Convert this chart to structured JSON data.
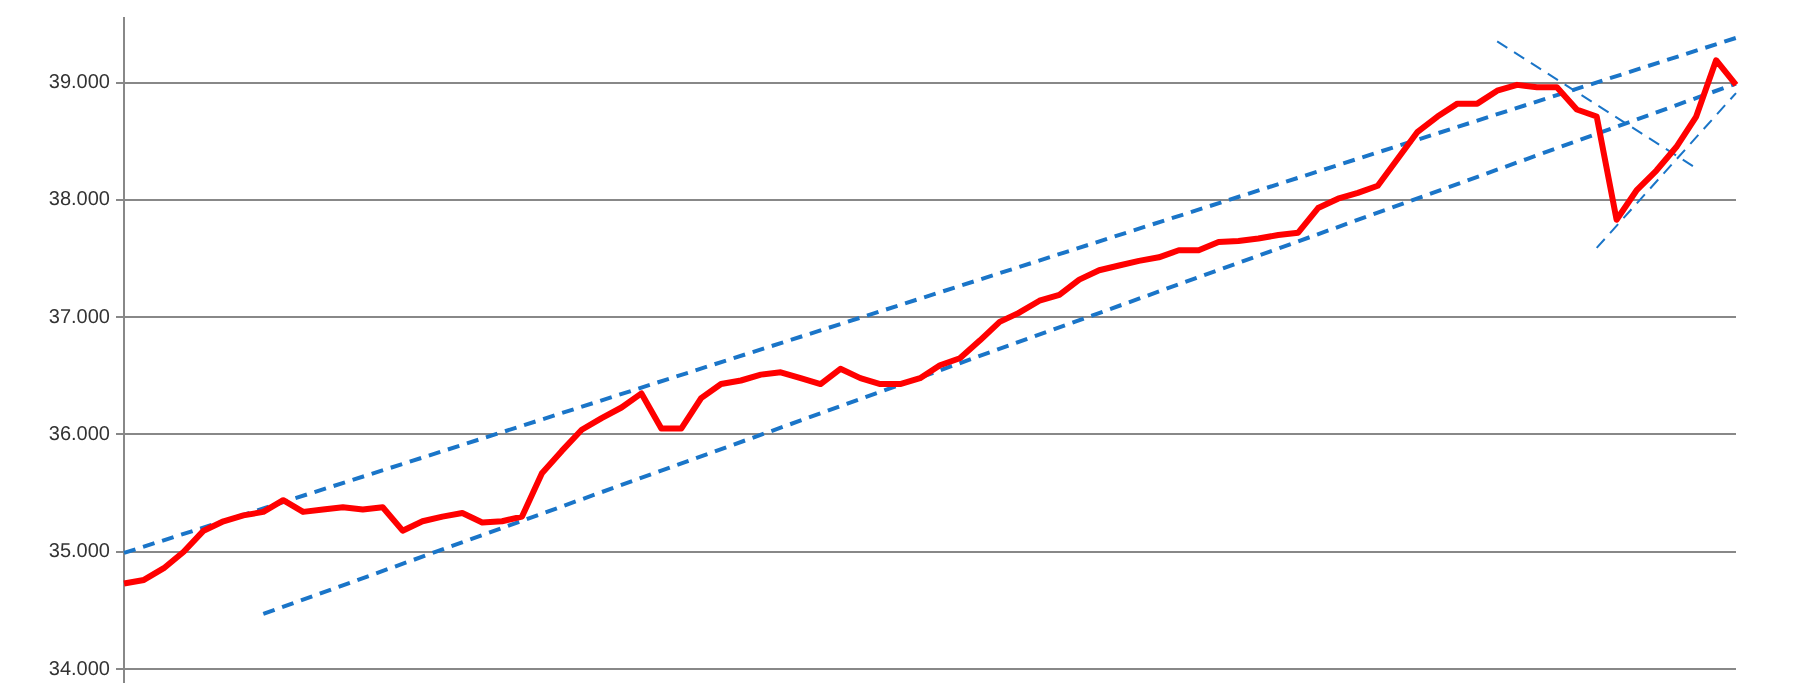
{
  "chart_data": {
    "type": "line",
    "categories": [
      null,
      null,
      null,
      null,
      null,
      null,
      null,
      null,
      null,
      null,
      null,
      null,
      null,
      null,
      null,
      null,
      null,
      null,
      null,
      null,
      null,
      null,
      null,
      null,
      null,
      null,
      null,
      null,
      null,
      null,
      null,
      null,
      null,
      null,
      null,
      null,
      null,
      null,
      null,
      null,
      null,
      null,
      null,
      null,
      null,
      null,
      null,
      null,
      null,
      null,
      null,
      null,
      null,
      null,
      null,
      null,
      null,
      null,
      null,
      null,
      null,
      null,
      null,
      null,
      null,
      null,
      null,
      null,
      null,
      null,
      null,
      null,
      null,
      null,
      null,
      null,
      null,
      null,
      null,
      null,
      null,
      null
    ],
    "series": [
      {
        "color": "#ff0000",
        "values": [
          34730,
          34760,
          34860,
          35000,
          35180,
          35260,
          35310,
          35340,
          35440,
          35340,
          35360,
          35380,
          35360,
          35380,
          35180,
          35260,
          35300,
          35330,
          35250,
          35260,
          35300,
          35670,
          35860,
          36040,
          36140,
          36230,
          36350,
          36050,
          36050,
          36310,
          36430,
          36460,
          36510,
          36530,
          36480,
          36430,
          36560,
          36480,
          36430,
          36430,
          36480,
          36590,
          36650,
          36800,
          36960,
          37040,
          37140,
          37190,
          37320,
          37400,
          37440,
          37480,
          37510,
          37570,
          37570,
          37640,
          37650,
          37670,
          37700,
          37720,
          37930,
          38010,
          38060,
          38120,
          38350,
          38580,
          38710,
          38820,
          38820,
          38930,
          38980,
          38960,
          38960,
          38770,
          38710,
          37830,
          38080,
          38250,
          38450,
          38710,
          39190,
          38980
        ]
      },
      {
        "color": "#1a75c8",
        "line_style": "dashed",
        "values": [
          34990,
          null,
          null,
          null,
          null,
          null,
          null,
          null,
          null,
          null,
          null,
          null,
          null,
          null,
          null,
          null,
          null,
          null,
          null,
          null,
          null,
          null,
          null,
          null,
          null,
          null,
          null,
          null,
          null,
          null,
          null,
          null,
          null,
          null,
          null,
          null,
          null,
          null,
          null,
          null,
          null,
          null,
          null,
          null,
          null,
          null,
          null,
          null,
          null,
          null,
          null,
          null,
          null,
          null,
          null,
          null,
          null,
          null,
          null,
          null,
          null,
          null,
          null,
          null,
          null,
          null,
          null,
          null,
          null,
          null,
          null,
          null,
          null,
          null,
          null,
          null,
          null,
          null,
          null,
          null,
          null,
          39380
        ]
      },
      {
        "color": "#1a75c8",
        "line_style": "dashed",
        "values": [
          null,
          null,
          null,
          null,
          null,
          null,
          null,
          34470,
          null,
          null,
          null,
          null,
          null,
          null,
          null,
          null,
          null,
          null,
          null,
          null,
          null,
          null,
          null,
          null,
          null,
          null,
          null,
          null,
          null,
          null,
          null,
          null,
          null,
          null,
          null,
          null,
          null,
          null,
          null,
          null,
          null,
          null,
          null,
          null,
          null,
          null,
          null,
          null,
          null,
          null,
          null,
          null,
          null,
          null,
          null,
          null,
          null,
          null,
          null,
          null,
          null,
          null,
          null,
          null,
          null,
          null,
          null,
          null,
          null,
          null,
          null,
          null,
          null,
          null,
          null,
          null,
          null,
          null,
          null,
          null,
          null,
          38990
        ]
      },
      {
        "color": "#1a75c8",
        "line_style": "dashed",
        "values": [
          null,
          null,
          null,
          null,
          null,
          null,
          null,
          null,
          null,
          null,
          null,
          null,
          null,
          null,
          null,
          null,
          null,
          null,
          null,
          null,
          null,
          null,
          null,
          null,
          null,
          null,
          null,
          null,
          null,
          null,
          null,
          null,
          null,
          null,
          null,
          null,
          null,
          null,
          null,
          null,
          null,
          null,
          null,
          null,
          null,
          null,
          null,
          null,
          null,
          null,
          null,
          null,
          null,
          null,
          null,
          null,
          null,
          null,
          null,
          null,
          null,
          null,
          null,
          null,
          null,
          null,
          null,
          null,
          null,
          39350,
          null,
          null,
          null,
          null,
          null,
          null,
          null,
          null,
          null,
          38270,
          null,
          null
        ]
      },
      {
        "color": "#1a75c8",
        "line_style": "dashed",
        "values": [
          null,
          null,
          null,
          null,
          null,
          null,
          null,
          null,
          null,
          null,
          null,
          null,
          null,
          null,
          null,
          null,
          null,
          null,
          null,
          null,
          null,
          null,
          null,
          null,
          null,
          null,
          null,
          null,
          null,
          null,
          null,
          null,
          null,
          null,
          null,
          null,
          null,
          null,
          null,
          null,
          null,
          null,
          null,
          null,
          null,
          null,
          null,
          null,
          null,
          null,
          null,
          null,
          null,
          null,
          null,
          null,
          null,
          null,
          null,
          null,
          null,
          null,
          null,
          null,
          null,
          null,
          null,
          null,
          null,
          null,
          null,
          null,
          null,
          null,
          37590,
          null,
          null,
          null,
          null,
          null,
          null,
          38910
        ]
      }
    ],
    "ylim": [
      33890,
      39550
    ],
    "yticks": [
      {
        "value": 34000,
        "label": "34.000"
      },
      {
        "value": 35000,
        "label": "35.000"
      },
      {
        "value": 36000,
        "label": "36.000"
      },
      {
        "value": 37000,
        "label": "37.000"
      },
      {
        "value": 38000,
        "label": "38.000"
      },
      {
        "value": 39000,
        "label": "39.000"
      }
    ],
    "grid": "y",
    "legend": false,
    "tick_labels": "y",
    "marker": "none"
  }
}
